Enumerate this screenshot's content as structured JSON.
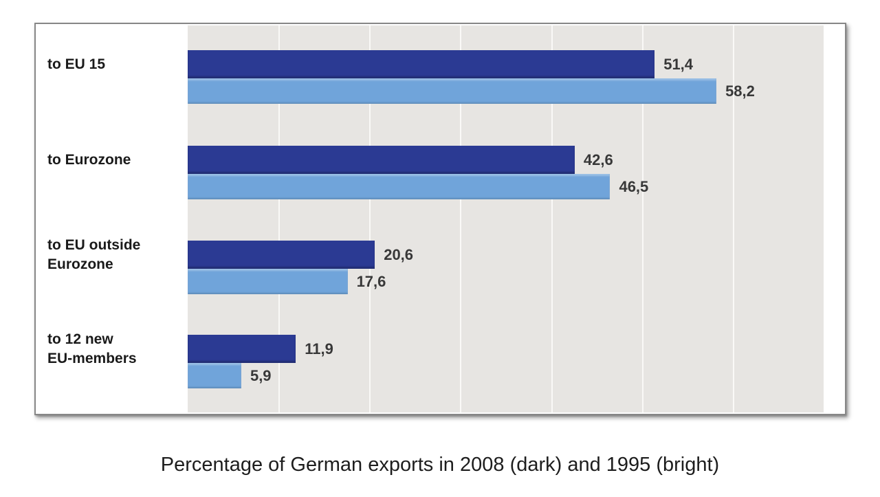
{
  "chart_data": {
    "type": "bar",
    "orientation": "horizontal",
    "title": "Percentage of German exports in 2008 (dark) and 1995 (bright)",
    "xlabel": "",
    "ylabel": "",
    "categories": [
      "to EU 15",
      "to Eurozone",
      "to EU outside\nEurozone",
      "to 12 new\nEU-members"
    ],
    "series": [
      {
        "name": "2008 (dark)",
        "color": "#2b3a93",
        "values": [
          51.4,
          42.6,
          20.6,
          11.9
        ],
        "labels": [
          "51,4",
          "42,6",
          "20,6",
          "11,9"
        ]
      },
      {
        "name": "1995 (bright)",
        "color": "#70a4da",
        "values": [
          58.2,
          46.5,
          17.6,
          5.9
        ],
        "labels": [
          "58,2",
          "46,5",
          "17,6",
          "5,9"
        ]
      }
    ],
    "xlim": [
      0,
      70
    ],
    "gridline_interval": 10,
    "grid": true,
    "legend_visible": false,
    "value_label_decimal_separator": ",",
    "plot_background": "#e7e5e2",
    "gridline_color": "#faf9f7",
    "panel_border_color": "#878787"
  }
}
